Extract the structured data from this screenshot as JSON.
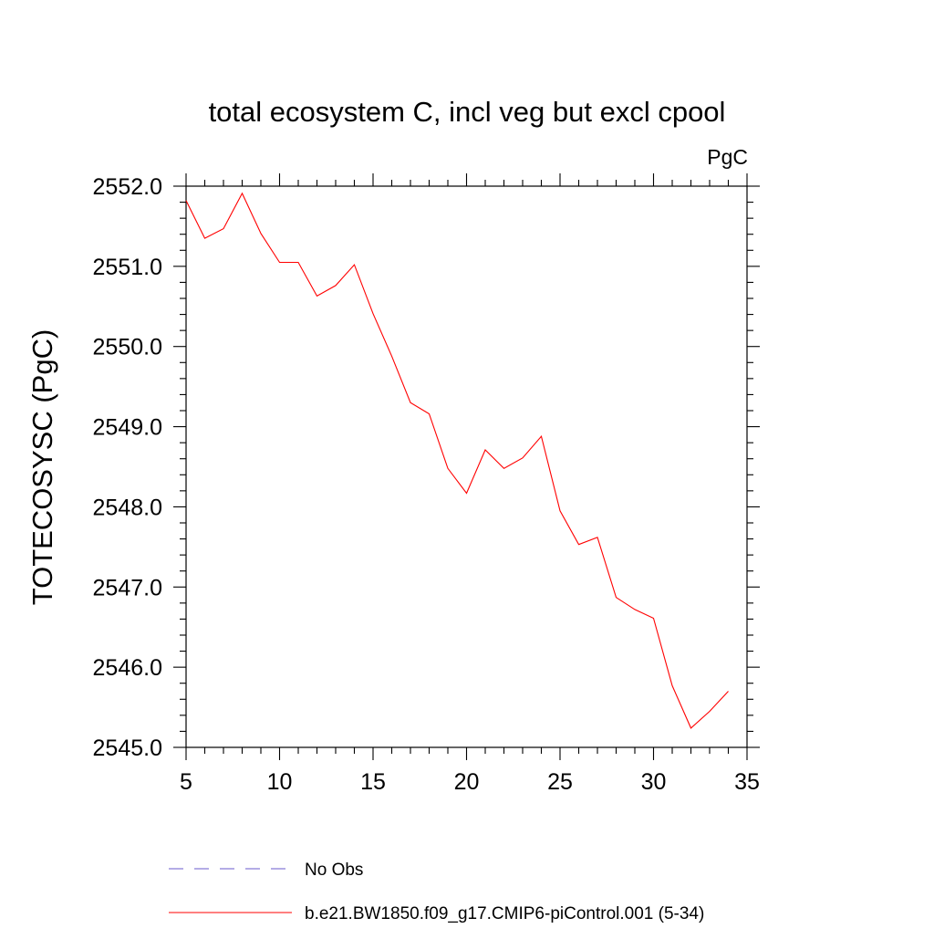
{
  "chart_data": {
    "type": "line",
    "title": "total ecosystem C, incl veg but excl cpool",
    "units_label": "PgC",
    "xlabel": "",
    "ylabel": "TOTECOSYSC  (PgC)",
    "xlim": [
      5,
      35
    ],
    "ylim": [
      2545.0,
      2552.0
    ],
    "x_ticks": [
      5,
      10,
      15,
      20,
      25,
      30,
      35
    ],
    "x_tick_labels": [
      "5",
      "10",
      "15",
      "20",
      "25",
      "30",
      "35"
    ],
    "y_ticks": [
      2545.0,
      2546.0,
      2547.0,
      2548.0,
      2549.0,
      2550.0,
      2551.0,
      2552.0
    ],
    "y_tick_labels": [
      "2545.0",
      "2546.0",
      "2547.0",
      "2548.0",
      "2549.0",
      "2550.0",
      "2551.0",
      "2552.0"
    ],
    "grid": false,
    "legend_position": "bottom",
    "series": [
      {
        "name": "No Obs",
        "style": "dashed",
        "color": "#6a5acd",
        "x": [],
        "values": []
      },
      {
        "name": "b.e21.BW1850.f09_g17.CMIP6-piControl.001 (5-34)",
        "style": "solid",
        "color": "#ff0000",
        "x": [
          5,
          6,
          7,
          8,
          9,
          10,
          11,
          12,
          13,
          14,
          15,
          16,
          17,
          18,
          19,
          20,
          21,
          22,
          23,
          24,
          25,
          26,
          27,
          28,
          29,
          30,
          31,
          32,
          33,
          34
        ],
        "values": [
          2551.82,
          2551.35,
          2551.47,
          2551.91,
          2551.41,
          2551.05,
          2551.05,
          2550.63,
          2550.76,
          2551.02,
          2550.41,
          2549.88,
          2549.3,
          2549.16,
          2548.48,
          2548.17,
          2548.71,
          2548.48,
          2548.61,
          2548.88,
          2547.95,
          2547.53,
          2547.62,
          2546.87,
          2546.72,
          2546.61,
          2545.77,
          2545.24,
          2545.45,
          2545.7
        ]
      }
    ]
  }
}
